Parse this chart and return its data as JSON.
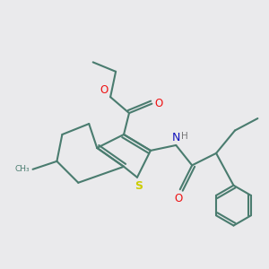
{
  "bg_color": "#eaeaec",
  "bond_color": "#4a7c6f",
  "s_color": "#cccc00",
  "o_color": "#ee1111",
  "n_color": "#1111bb",
  "h_color": "#777777",
  "linewidth": 1.5,
  "figsize": [
    3.0,
    3.0
  ],
  "dpi": 100,
  "xlim": [
    0.0,
    10.0
  ],
  "ylim": [
    0.5,
    10.5
  ]
}
